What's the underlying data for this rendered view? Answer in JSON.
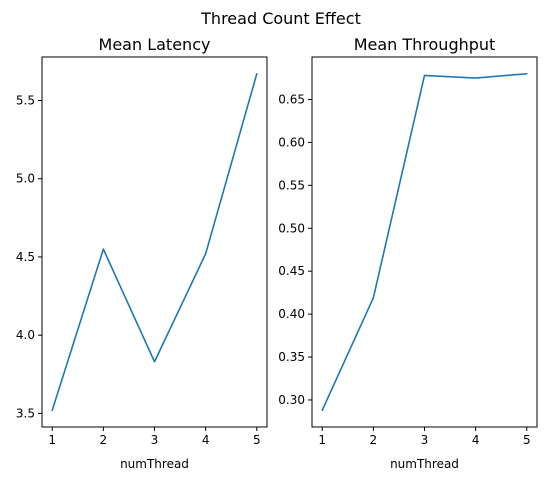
{
  "figure": {
    "suptitle": "Thread Count Effect"
  },
  "chart_data": [
    {
      "type": "line",
      "title": "Mean Latency",
      "xlabel": "numThread",
      "ylabel": "",
      "x": [
        1,
        2,
        3,
        4,
        5
      ],
      "series": [
        {
          "values": [
            3.52,
            4.55,
            3.83,
            4.52,
            5.67
          ],
          "color": "#1f77b4"
        }
      ],
      "xticks": [
        1,
        2,
        3,
        4,
        5
      ],
      "xtick_labels": [
        "1",
        "2",
        "3",
        "4",
        "5"
      ],
      "yticks": [
        3.5,
        4.0,
        4.5,
        5.0,
        5.5
      ],
      "ytick_labels": [
        "3.5",
        "4.0",
        "4.5",
        "5.0",
        "5.5"
      ],
      "xlim": [
        0.8,
        5.2
      ],
      "ylim": [
        3.413,
        5.778
      ],
      "grid": false,
      "legend": "none"
    },
    {
      "type": "line",
      "title": "Mean Throughput",
      "xlabel": "numThread",
      "ylabel": "",
      "x": [
        1,
        2,
        3,
        4,
        5
      ],
      "series": [
        {
          "values": [
            0.288,
            0.419,
            0.678,
            0.675,
            0.68
          ],
          "color": "#1f77b4"
        }
      ],
      "xticks": [
        1,
        2,
        3,
        4,
        5
      ],
      "xtick_labels": [
        "1",
        "2",
        "3",
        "4",
        "5"
      ],
      "yticks": [
        0.3,
        0.35,
        0.4,
        0.45,
        0.5,
        0.55,
        0.6,
        0.65
      ],
      "ytick_labels": [
        "0.30",
        "0.35",
        "0.40",
        "0.45",
        "0.50",
        "0.55",
        "0.60",
        "0.65"
      ],
      "xlim": [
        0.8,
        5.2
      ],
      "ylim": [
        0.2685,
        0.6995
      ],
      "grid": false,
      "legend": "none"
    }
  ]
}
